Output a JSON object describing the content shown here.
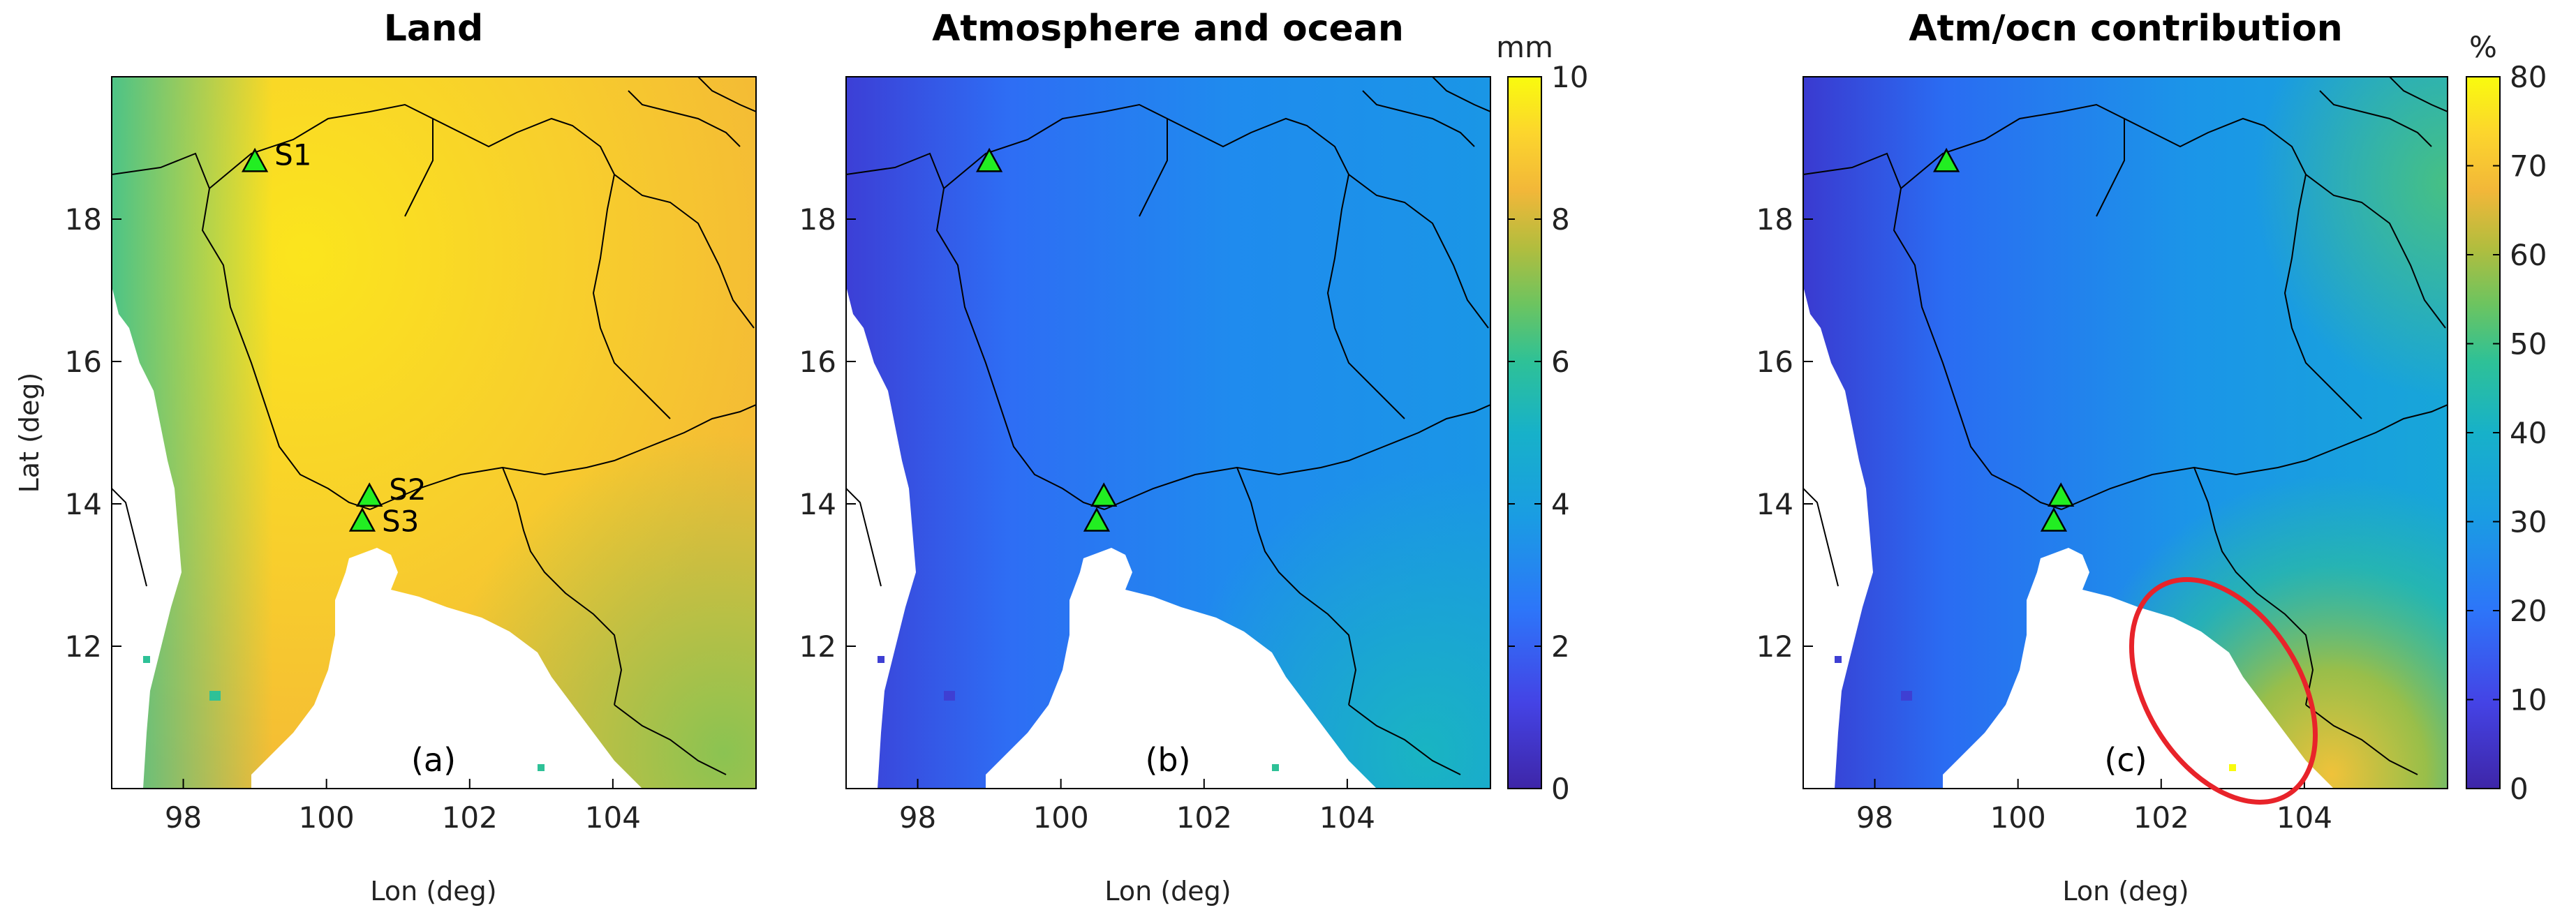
{
  "chart_data": [
    {
      "type": "heatmap",
      "panel": "(a)",
      "title": "Land",
      "xlabel": "Lon (deg)",
      "ylabel": "Lat (deg)",
      "xticks": [
        98,
        100,
        102,
        104
      ],
      "yticks": [
        12,
        14,
        16,
        18
      ],
      "xlim": [
        97,
        106
      ],
      "ylim": [
        10,
        20
      ],
      "colorbar": "shared with (b): 0-10 mm",
      "sites": [
        {
          "label": "S1",
          "lon": 99.0,
          "lat": 18.8
        },
        {
          "label": "S2",
          "lon": 100.6,
          "lat": 14.1
        },
        {
          "label": "S3",
          "lon": 100.5,
          "lat": 13.75
        }
      ],
      "description_values": "predominantly 8-10 mm over land; lower (5-7 mm) along western coast and south-east"
    },
    {
      "type": "heatmap",
      "panel": "(b)",
      "title": "Atmosphere and ocean",
      "xlabel": "Lon (deg)",
      "xticks": [
        98,
        100,
        102,
        104
      ],
      "yticks": [
        12,
        14,
        16,
        18
      ],
      "xlim": [
        97,
        106
      ],
      "ylim": [
        10,
        20
      ],
      "colorbar": {
        "unit": "mm",
        "range": [
          0,
          10
        ],
        "ticks": [
          0,
          2,
          4,
          6,
          8,
          10
        ]
      },
      "sites": [
        {
          "lon": 99.0,
          "lat": 18.8
        },
        {
          "lon": 100.6,
          "lat": 14.1
        },
        {
          "lon": 100.5,
          "lat": 13.75
        }
      ],
      "description_values": "mostly 2-4 mm; ~1 mm on western coast; up to 5 mm along south-east coast"
    },
    {
      "type": "heatmap",
      "panel": "(c)",
      "title": "Atm/ocn contribution",
      "xlabel": "Lon (deg)",
      "xticks": [
        98,
        100,
        102,
        104
      ],
      "yticks": [
        12,
        14,
        16,
        18
      ],
      "xlim": [
        97,
        106
      ],
      "ylim": [
        10,
        20
      ],
      "colorbar": {
        "unit": "%",
        "range": [
          0,
          80
        ],
        "ticks": [
          0,
          10,
          20,
          30,
          40,
          50,
          60,
          70,
          80
        ]
      },
      "sites": [
        {
          "lon": 99.0,
          "lat": 18.8
        },
        {
          "lon": 100.6,
          "lat": 14.1
        },
        {
          "lon": 100.5,
          "lat": 13.75
        }
      ],
      "annotation": "red ellipse around south-east coast (Lon 102.5-104.5, Lat 10.2-12.8)",
      "description_values": "mostly 20-30%; up to ~60-70% along the south-east coast"
    }
  ],
  "colors": {
    "cmap_low": "#3e26a8",
    "cmap_mid": "#17b1d6",
    "cmap_green": "#36c28a",
    "cmap_orange": "#f7ba3c",
    "cmap_high": "#f9fb0e",
    "sea": "#ffffff",
    "marker": "#22ee22",
    "ellipse": "#e8232a"
  }
}
